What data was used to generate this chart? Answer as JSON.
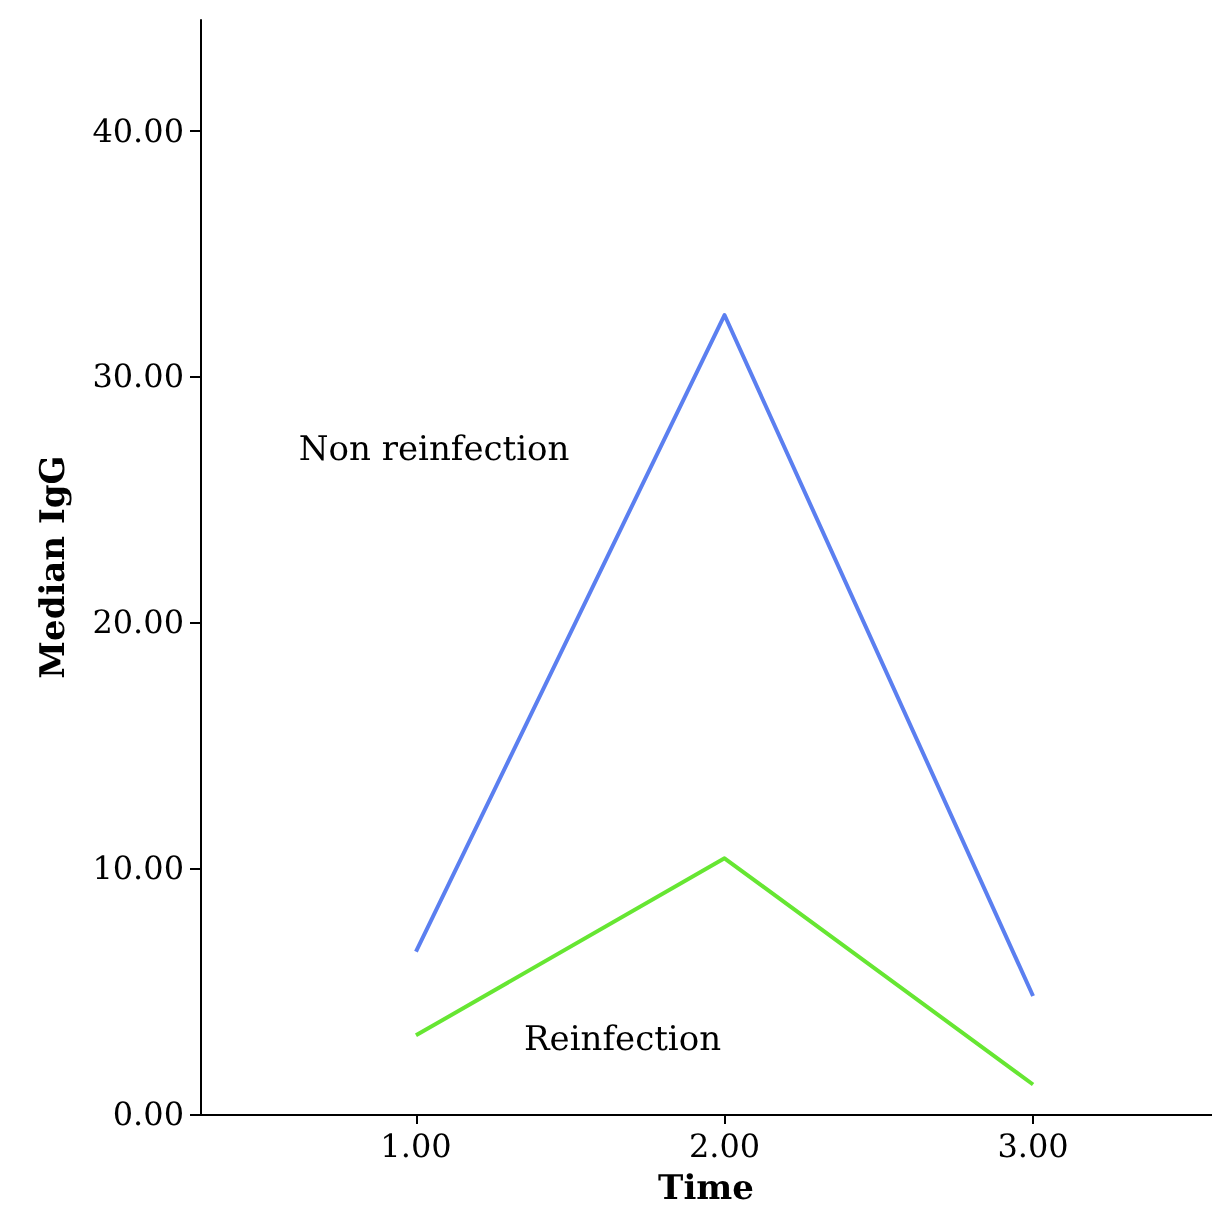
{
  "chart_data": {
    "type": "line",
    "xlabel": "Time",
    "ylabel": "Median IgG",
    "x": [
      1,
      2,
      3
    ],
    "series": [
      {
        "name": "Non reinfection",
        "color": "#5b7ff0",
        "values": [
          6.6,
          32.5,
          4.8
        ]
      },
      {
        "name": "Reinfection",
        "color": "#66e632",
        "values": [
          3.2,
          10.4,
          1.2
        ]
      }
    ],
    "xlim": [
      0.3,
      3.58
    ],
    "xticks": [
      {
        "value": 1,
        "label": "1.00"
      },
      {
        "value": 2,
        "label": "2.00"
      },
      {
        "value": 3,
        "label": "3.00"
      }
    ],
    "ylim": [
      0,
      44.5
    ],
    "yticks": [
      {
        "value": 0,
        "label": "0.00"
      },
      {
        "value": 10,
        "label": "10.00"
      },
      {
        "value": 20,
        "label": "20.00"
      },
      {
        "value": 30,
        "label": "30.00"
      },
      {
        "value": 40,
        "label": "40.00"
      }
    ],
    "grid": false,
    "legend": false,
    "marker": "none",
    "line_style": "solid"
  }
}
